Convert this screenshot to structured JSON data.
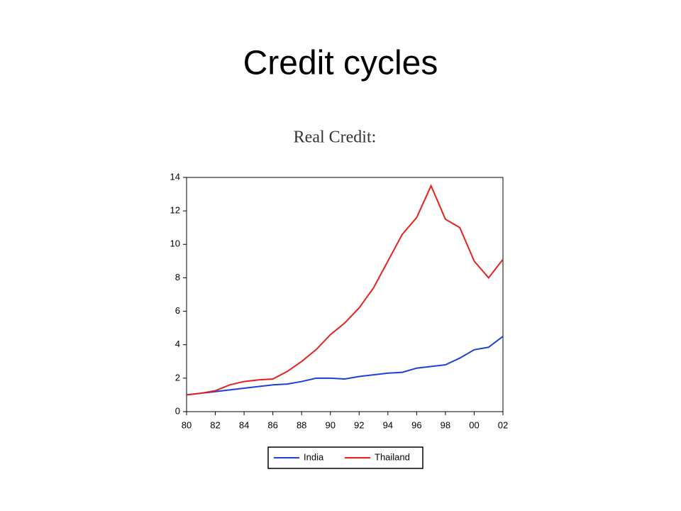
{
  "slide_title": "Credit cycles",
  "chart_data": {
    "type": "line",
    "title": "Real Credit:",
    "x": [
      1980,
      1981,
      1982,
      1983,
      1984,
      1985,
      1986,
      1987,
      1988,
      1989,
      1990,
      1991,
      1992,
      1993,
      1994,
      1995,
      1996,
      1997,
      1998,
      1999,
      2000,
      2001,
      2002
    ],
    "series": [
      {
        "name": "India",
        "color": "#1f3fdb",
        "values": [
          1.0,
          1.1,
          1.2,
          1.3,
          1.4,
          1.5,
          1.6,
          1.65,
          1.8,
          2.0,
          2.0,
          1.95,
          2.1,
          2.2,
          2.3,
          2.35,
          2.6,
          2.7,
          2.8,
          3.2,
          3.7,
          3.85,
          4.5
        ]
      },
      {
        "name": "Thailand",
        "color": "#e8201c",
        "values": [
          1.0,
          1.1,
          1.25,
          1.6,
          1.8,
          1.9,
          1.95,
          2.4,
          3.0,
          3.7,
          4.6,
          5.3,
          6.2,
          7.4,
          9.0,
          10.6,
          11.6,
          13.5,
          11.5,
          11.0,
          9.0,
          8.0,
          9.1
        ]
      }
    ],
    "xlim": [
      1980,
      2002
    ],
    "xticks": [
      {
        "value": 1980,
        "label": "80"
      },
      {
        "value": 1982,
        "label": "82"
      },
      {
        "value": 1984,
        "label": "84"
      },
      {
        "value": 1986,
        "label": "86"
      },
      {
        "value": 1988,
        "label": "88"
      },
      {
        "value": 1990,
        "label": "90"
      },
      {
        "value": 1992,
        "label": "92"
      },
      {
        "value": 1994,
        "label": "94"
      },
      {
        "value": 1996,
        "label": "96"
      },
      {
        "value": 1998,
        "label": "98"
      },
      {
        "value": 2000,
        "label": "00"
      },
      {
        "value": 2002,
        "label": "02"
      }
    ],
    "ylim": [
      0,
      14
    ],
    "yticks": [
      0,
      2,
      4,
      6,
      8,
      10,
      12,
      14
    ],
    "legend": "bottom"
  }
}
